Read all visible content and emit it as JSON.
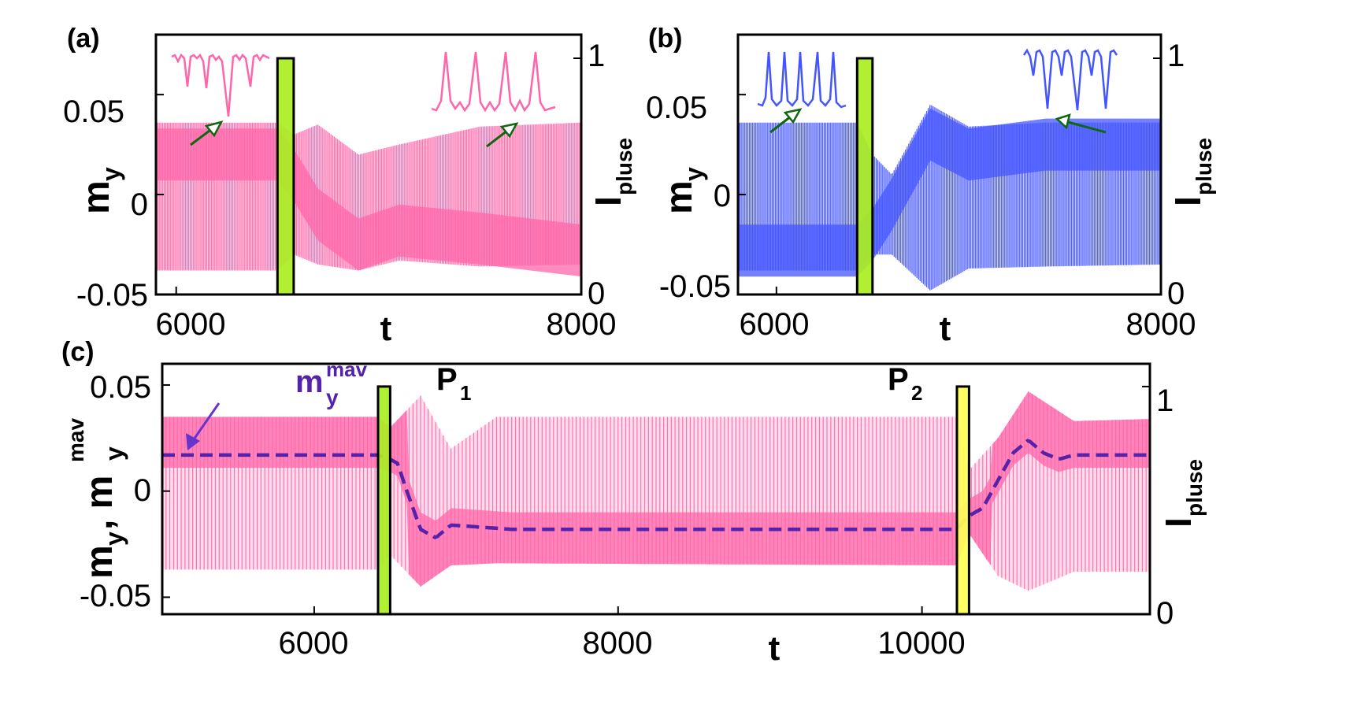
{
  "chart_data": [
    {
      "type": "line",
      "panel_label": "(a)",
      "xlabel": "t",
      "ylabel": "m",
      "ylabel_sub": "y",
      "y2label": "I",
      "y2label_sub": "pluse",
      "xlim": [
        5900,
        8000
      ],
      "ylim": [
        -0.05,
        0.08
      ],
      "y2lim": [
        0,
        1.1
      ],
      "x_ticks": [
        "6000",
        "8000"
      ],
      "y_ticks": [
        "0.05",
        "0",
        "-0.05"
      ],
      "y2_ticks": [
        "1",
        "0"
      ],
      "grid": false,
      "color": "#ff66aa",
      "pulse_color": "#aaee22",
      "pulses": [
        {
          "t_start": 6500,
          "t_end": 6580,
          "amplitude": 1.0
        }
      ],
      "series": [
        {
          "values_desc": "oscillating m_y",
          "x": [
            5900,
            6500,
            6580,
            6700,
            6900,
            7100,
            7500,
            8000
          ],
          "upper": [
            0.036,
            0.036,
            0.03,
            0.035,
            0.02,
            0.025,
            0.034,
            0.036
          ],
          "lower": [
            -0.038,
            -0.038,
            -0.03,
            -0.035,
            -0.038,
            -0.033,
            -0.036,
            -0.035
          ],
          "mean": [
            0.02,
            0.02,
            0.01,
            -0.01,
            -0.025,
            -0.018,
            -0.022,
            -0.028
          ]
        }
      ]
    },
    {
      "type": "line",
      "panel_label": "(b)",
      "xlabel": "t",
      "ylabel": "m",
      "ylabel_sub": "y",
      "y2label": "I",
      "y2label_sub": "pluse",
      "xlim": [
        5800,
        8000
      ],
      "ylim": [
        -0.05,
        0.08
      ],
      "y2lim": [
        0,
        1.1
      ],
      "x_ticks": [
        "6000",
        "8000"
      ],
      "y_ticks": [
        "0.05",
        "0",
        "-0.05"
      ],
      "y2_ticks": [
        "1",
        "0"
      ],
      "grid": false,
      "color": "#4455ff",
      "pulse_color": "#aaee22",
      "pulses": [
        {
          "t_start": 6420,
          "t_end": 6500,
          "amplitude": 1.0
        }
      ],
      "series": [
        {
          "x": [
            5800,
            6420,
            6500,
            6600,
            6800,
            7000,
            7400,
            8000
          ],
          "upper": [
            0.036,
            0.036,
            0.02,
            0.01,
            0.045,
            0.034,
            0.036,
            0.036
          ],
          "lower": [
            -0.038,
            -0.038,
            -0.03,
            -0.03,
            -0.048,
            -0.037,
            -0.036,
            -0.035
          ],
          "mean": [
            -0.028,
            -0.028,
            -0.02,
            -0.005,
            0.03,
            0.02,
            0.025,
            0.025
          ]
        }
      ]
    },
    {
      "type": "line",
      "panel_label": "(c)",
      "xlabel": "t",
      "ylabel": "m",
      "ylabel_sub": "y",
      "ylabel_mid": ", m",
      "ylabel_sup": "mav",
      "y2label": "I",
      "y2label_sub": "pluse",
      "xlim": [
        5000,
        11500
      ],
      "ylim": [
        -0.058,
        0.06
      ],
      "y2lim": [
        0,
        1.1
      ],
      "x_ticks": [
        "6000",
        "8000",
        "10000"
      ],
      "y_ticks": [
        "0.05",
        "0",
        "-0.05"
      ],
      "y2_ticks": [
        "1",
        "0"
      ],
      "grid": false,
      "color": "#ff66aa",
      "mav_color": "#5522aa",
      "annotation_mav_main": "m",
      "annotation_mav_sub": "y",
      "annotation_mav_sup": "mav",
      "annotation_p1_main": "P",
      "annotation_p1_sub": "1",
      "annotation_p2_main": "P",
      "annotation_p2_sub": "2",
      "pulses": [
        {
          "t_start": 6420,
          "t_end": 6500,
          "amplitude": 1.0,
          "color": "#aaee22"
        },
        {
          "t_start": 10230,
          "t_end": 10310,
          "amplitude": 1.0,
          "color": "#ffff55"
        }
      ],
      "series": [
        {
          "name": "m_y",
          "x": [
            5000,
            6420,
            6500,
            6700,
            6900,
            7200,
            10230,
            10310,
            10500,
            10700,
            11000,
            11500
          ],
          "upper": [
            0.035,
            0.035,
            0.03,
            0.045,
            0.02,
            0.035,
            0.035,
            0.01,
            0.025,
            0.047,
            0.033,
            0.034
          ],
          "lower": [
            -0.037,
            -0.037,
            -0.03,
            -0.045,
            -0.035,
            -0.034,
            -0.035,
            -0.02,
            -0.04,
            -0.047,
            -0.038,
            -0.038
          ]
        },
        {
          "name": "m_y^mav",
          "x": [
            5000,
            6420,
            6500,
            6550,
            6600,
            6700,
            6800,
            6900,
            7100,
            7300,
            10230,
            10300,
            10400,
            10500,
            10600,
            10700,
            10800,
            10900,
            11000,
            11500
          ],
          "values": [
            0.017,
            0.017,
            0.015,
            0.013,
            0.002,
            -0.018,
            -0.022,
            -0.016,
            -0.017,
            -0.018,
            -0.018,
            -0.012,
            -0.008,
            0.005,
            0.018,
            0.024,
            0.018,
            0.015,
            0.017,
            0.017
          ]
        }
      ]
    }
  ]
}
